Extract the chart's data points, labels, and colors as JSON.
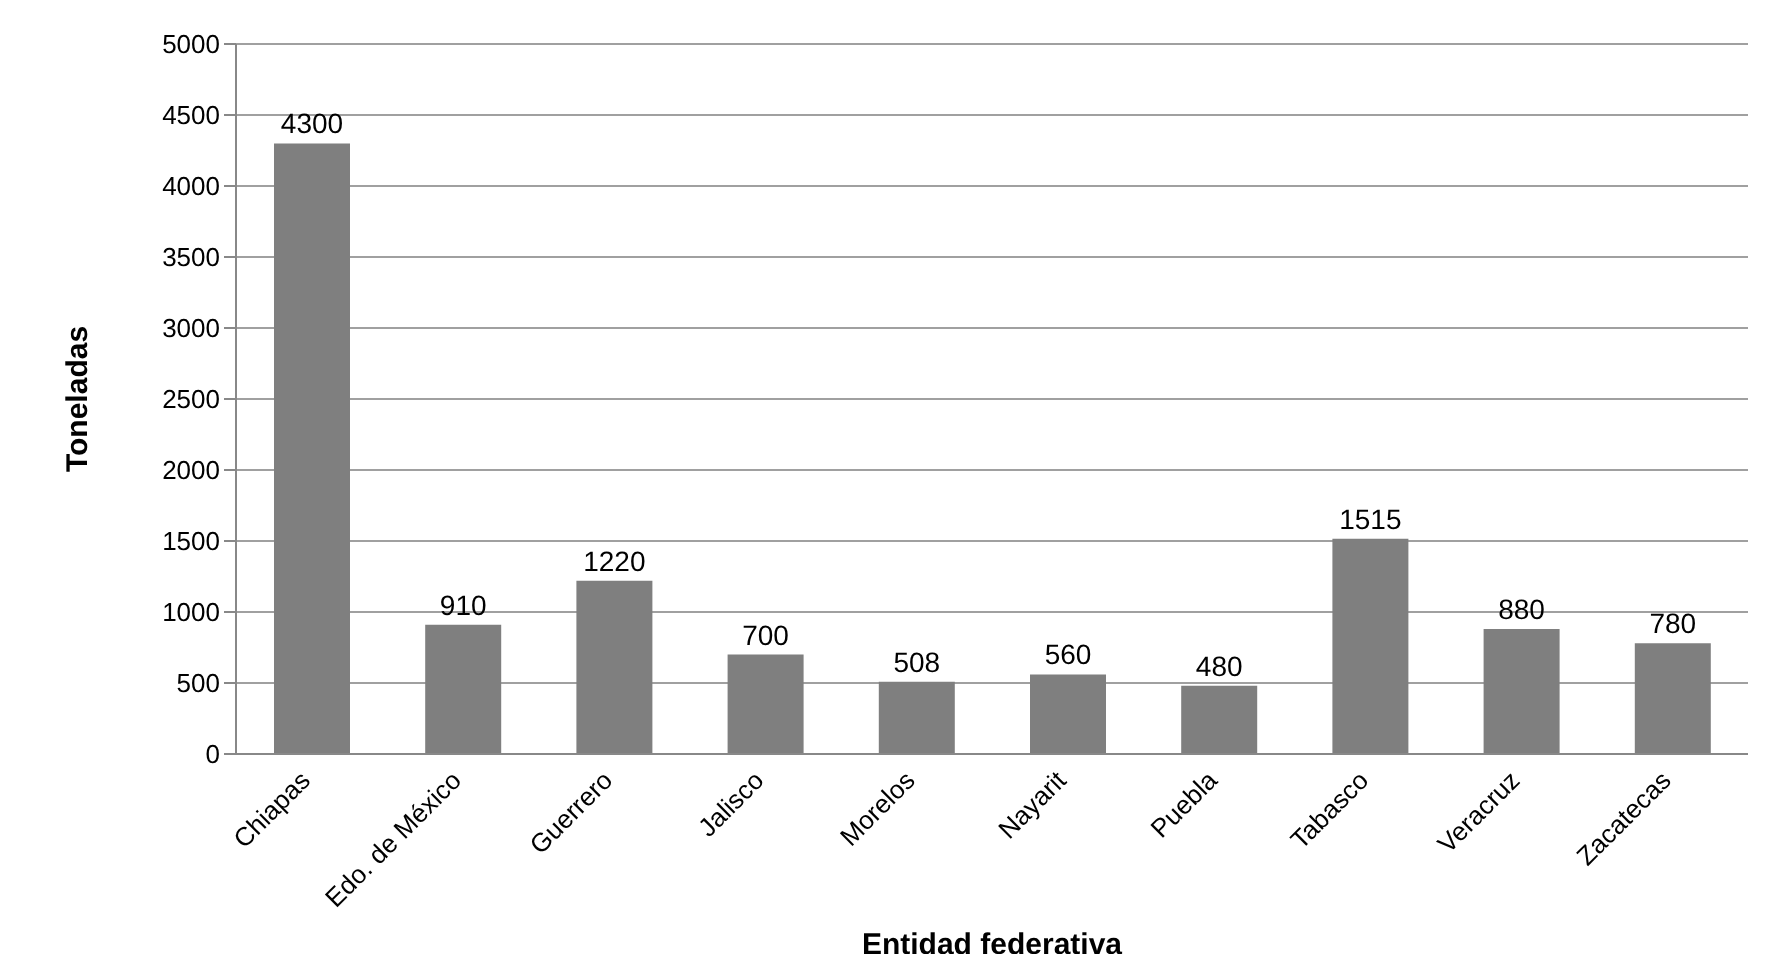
{
  "chart_data": {
    "type": "bar",
    "xlabel": "Entidad federativa",
    "ylabel": "Toneladas",
    "categories": [
      "Chiapas",
      "Edo. de México",
      "Guerrero",
      "Jalisco",
      "Morelos",
      "Nayarit",
      "Puebla",
      "Tabasco",
      "Veracruz",
      "Zacatecas"
    ],
    "values": [
      4300,
      910,
      1220,
      700,
      508,
      560,
      480,
      1515,
      880,
      780
    ],
    "color": "#7f7f7f",
    "ylim": [
      0,
      5000
    ],
    "yticks": [
      0,
      500,
      1000,
      1500,
      2000,
      2500,
      3000,
      3500,
      4000,
      4500,
      5000
    ],
    "grid": "y",
    "data_labels": true
  }
}
